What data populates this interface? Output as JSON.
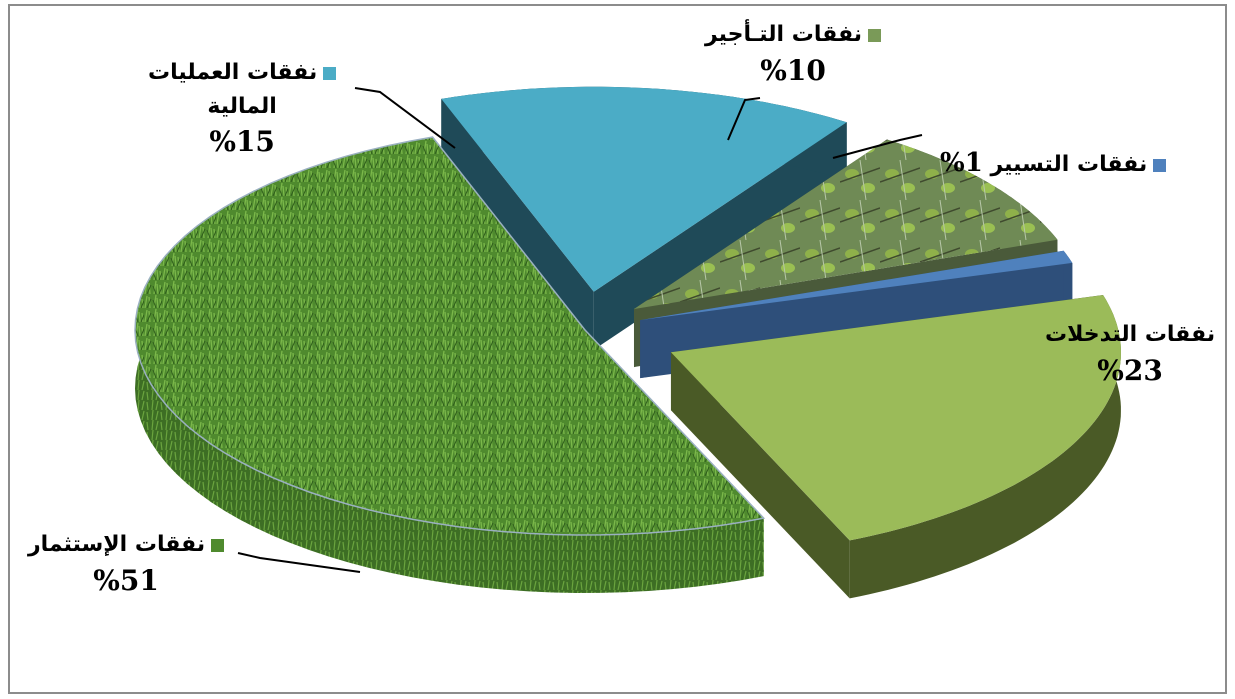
{
  "chart_data": {
    "type": "pie",
    "slices": [
      {
        "name": "نفقات الإستثمار",
        "value": 51,
        "label_pct": "%51",
        "color": "#4f8a2e"
      },
      {
        "name": "نفقات العمليات المالية",
        "name_line1": "نفقات العمليات",
        "name_line2": "المالية",
        "value": 15,
        "label_pct": "%15",
        "color": "#4bacc6"
      },
      {
        "name": "نفقات التـأجير",
        "value": 10,
        "label_pct": "%10",
        "color": "#7a9a58"
      },
      {
        "name": "نفقات التسيير",
        "value": 1,
        "label_pct": "1%",
        "color": "#4f81bd"
      },
      {
        "name": "نفقات التدخلات",
        "value": 23,
        "label_pct": "%23",
        "color": "#9bbb59"
      }
    ]
  }
}
